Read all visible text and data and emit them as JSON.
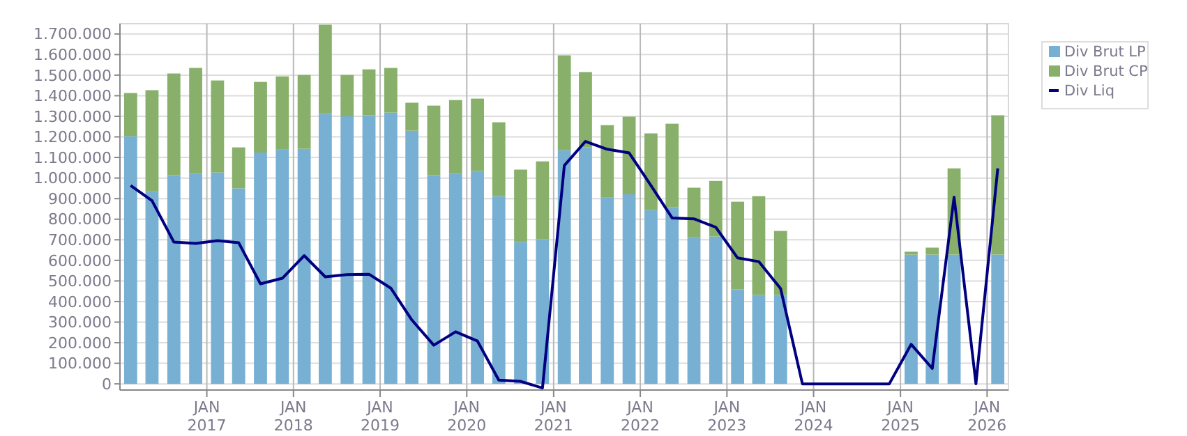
{
  "chart_data": {
    "type": "bar",
    "stacked": true,
    "grid": true,
    "legend": "right",
    "x": [
      "2016-02-15",
      "2016-05-15",
      "2016-08-15",
      "2016-11-15",
      "2017-02-15",
      "2017-05-15",
      "2017-08-15",
      "2017-11-15",
      "2018-02-15",
      "2018-05-15",
      "2018-08-15",
      "2018-11-15",
      "2019-02-15",
      "2019-05-15",
      "2019-08-15",
      "2019-11-15",
      "2020-02-15",
      "2020-05-15",
      "2020-08-15",
      "2020-11-15",
      "2021-02-15",
      "2021-05-15",
      "2021-08-15",
      "2021-11-15",
      "2022-02-15",
      "2022-05-15",
      "2022-08-15",
      "2022-11-15",
      "2023-02-15",
      "2023-05-15",
      "2023-08-15",
      "2023-11-15",
      "2024-02-15",
      "2024-05-15",
      "2024-08-15",
      "2024-11-15",
      "2025-02-15",
      "2025-05-15",
      "2025-08-15",
      "2025-11-15",
      "2026-02-15"
    ],
    "series": [
      {
        "name": "Div Brut LP",
        "color": "#77b0d3",
        "values": [
          1203000,
          935000,
          1014000,
          1020000,
          1027000,
          950000,
          1124000,
          1138000,
          1142000,
          1312000,
          1300000,
          1305000,
          1318000,
          1230000,
          1014000,
          1020000,
          1034000,
          912000,
          689000,
          703000,
          1135000,
          1150000,
          907000,
          921000,
          844000,
          858000,
          709000,
          716000,
          459000,
          432000,
          432000,
          0,
          0,
          0,
          0,
          0,
          628000,
          628000,
          628000,
          0,
          628000
        ]
      },
      {
        "name": "Div Brut CP",
        "color": "#88b06a",
        "values": [
          210000,
          492000,
          494000,
          515000,
          447000,
          199000,
          343000,
          356000,
          359000,
          433000,
          201000,
          223000,
          217000,
          136000,
          338000,
          359000,
          352000,
          359000,
          352000,
          378000,
          461000,
          365000,
          350000,
          377000,
          373000,
          406000,
          244000,
          270000,
          426000,
          480000,
          311000,
          0,
          0,
          0,
          0,
          0,
          14000,
          34000,
          419000,
          0,
          677000
        ]
      },
      {
        "name": "Div Liq",
        "type": "line",
        "color": "#000080",
        "values": [
          964000,
          890000,
          689000,
          682000,
          696000,
          686000,
          486000,
          513000,
          623000,
          520000,
          531000,
          533000,
          465000,
          310000,
          188000,
          253000,
          208000,
          18000,
          12000,
          -20000,
          1061000,
          1178000,
          1140000,
          1122000,
          964000,
          806000,
          802000,
          761000,
          612000,
          594000,
          463000,
          0,
          0,
          0,
          0,
          0,
          192000,
          75000,
          907000,
          0,
          1047000
        ]
      }
    ],
    "xlim": [
      "2016-01-01",
      "2026-04-01"
    ],
    "xticks": [
      {
        "value": "2017-01-01",
        "label": "JAN 2017"
      },
      {
        "value": "2018-01-01",
        "label": "JAN 2018"
      },
      {
        "value": "2019-01-01",
        "label": "JAN 2019"
      },
      {
        "value": "2020-01-01",
        "label": "JAN 2020"
      },
      {
        "value": "2021-01-01",
        "label": "JAN 2021"
      },
      {
        "value": "2022-01-01",
        "label": "JAN 2022"
      },
      {
        "value": "2023-01-01",
        "label": "JAN 2023"
      },
      {
        "value": "2024-01-01",
        "label": "JAN 2024"
      },
      {
        "value": "2025-01-01",
        "label": "JAN 2025"
      },
      {
        "value": "2026-01-01",
        "label": "JAN 2026"
      }
    ],
    "ylim": [
      -30000,
      1750000
    ],
    "yticks": [
      0,
      {
        "value": 100000,
        "label": "100.000"
      },
      {
        "value": 200000,
        "label": "200.000"
      },
      {
        "value": 300000,
        "label": "300.000"
      },
      {
        "value": 400000,
        "label": "400.000"
      },
      {
        "value": 500000,
        "label": "500.000"
      },
      {
        "value": 600000,
        "label": "600.000"
      },
      {
        "value": 700000,
        "label": "700.000"
      },
      {
        "value": 800000,
        "label": "800.000"
      },
      {
        "value": 900000,
        "label": "900.000"
      },
      {
        "value": 1000000,
        "label": "1.000.000"
      },
      {
        "value": 1100000,
        "label": "1.100.000"
      },
      {
        "value": 1200000,
        "label": "1.200.000"
      },
      {
        "value": 1300000,
        "label": "1.300.000"
      },
      {
        "value": 1400000,
        "label": "1.400.000"
      },
      {
        "value": 1500000,
        "label": "1.500.000"
      },
      {
        "value": 1600000,
        "label": "1.600.000"
      },
      {
        "value": 1700000,
        "label": "1.700.000"
      }
    ]
  }
}
